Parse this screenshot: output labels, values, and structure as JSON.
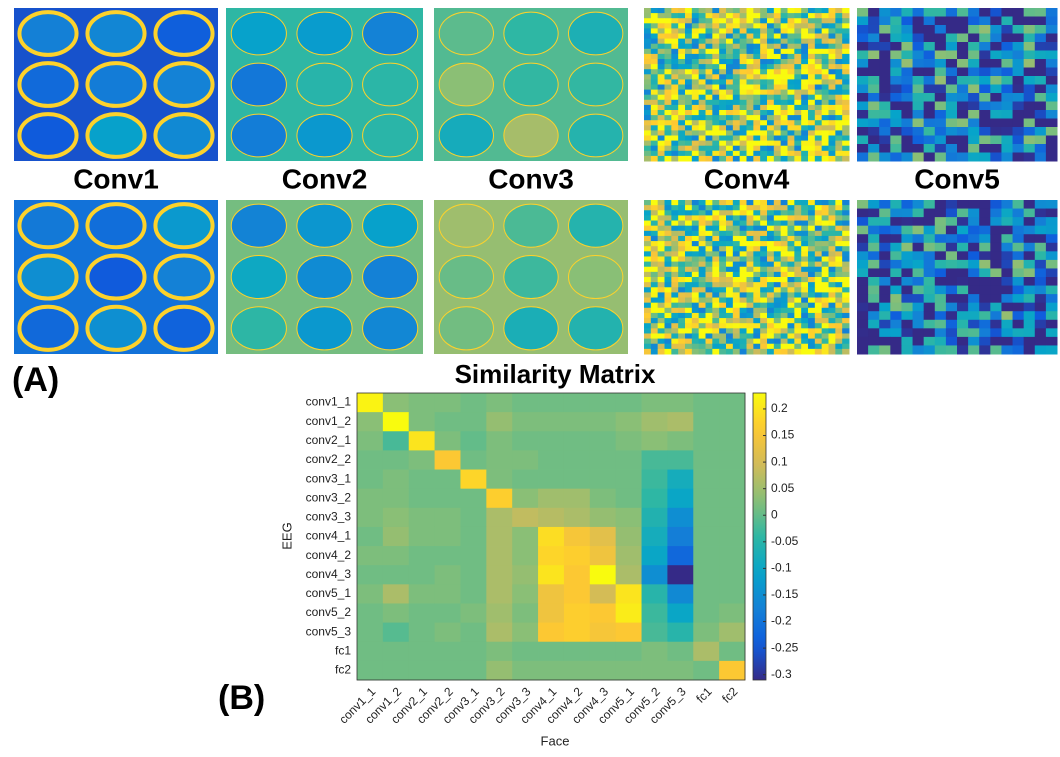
{
  "panel_a": {
    "label": "(A)",
    "layers": [
      "Conv1",
      "Conv2",
      "Conv3",
      "Conv4",
      "Conv5"
    ]
  },
  "panel_b": {
    "label": "(B)"
  },
  "chart_data": {
    "type": "heatmap",
    "title": "Similarity Matrix",
    "x_label": "Face",
    "y_label": "EEG",
    "colormap": "parula",
    "x": [
      "conv1_1",
      "conv1_2",
      "conv2_1",
      "conv2_2",
      "conv3_1",
      "conv3_2",
      "conv3_3",
      "conv4_1",
      "conv4_2",
      "conv4_3",
      "conv5_1",
      "conv5_2",
      "conv5_3",
      "fc1",
      "fc2"
    ],
    "y": [
      "conv1_1",
      "conv1_2",
      "conv2_1",
      "conv2_2",
      "conv3_1",
      "conv3_2",
      "conv3_3",
      "conv4_1",
      "conv4_2",
      "conv4_3",
      "conv5_1",
      "conv5_2",
      "conv5_3",
      "fc1",
      "fc2"
    ],
    "values": [
      [
        0.22,
        0.03,
        0.02,
        0.02,
        0.01,
        0.02,
        0.01,
        0.01,
        0.01,
        0.01,
        0.01,
        0.02,
        0.02,
        0.01,
        0.01
      ],
      [
        0.03,
        0.23,
        0.02,
        0.01,
        0.01,
        0.04,
        0.02,
        0.02,
        0.02,
        0.02,
        0.03,
        0.05,
        0.06,
        0.01,
        0.01
      ],
      [
        0.02,
        -0.02,
        0.2,
        0.02,
        0,
        0.02,
        0.01,
        0.01,
        0.01,
        0.01,
        0.02,
        0.03,
        0.02,
        0.01,
        0.01
      ],
      [
        0.01,
        0.01,
        0.02,
        0.16,
        0.01,
        0.02,
        0.02,
        0.01,
        0.01,
        0.01,
        0.01,
        -0.02,
        -0.02,
        0.01,
        0.01
      ],
      [
        0.01,
        0.02,
        0.01,
        0.01,
        0.18,
        0.02,
        0.01,
        0.01,
        0.01,
        0.01,
        0.01,
        -0.03,
        -0.08,
        0.01,
        0.01
      ],
      [
        0.02,
        0.02,
        0.01,
        0.01,
        0.01,
        0.17,
        0.03,
        0.05,
        0.05,
        0.02,
        0.01,
        -0.04,
        -0.1,
        0.01,
        0.01
      ],
      [
        0.02,
        0.03,
        0.02,
        0.02,
        0.01,
        0.06,
        0.08,
        0.07,
        0.06,
        0.04,
        0.03,
        -0.06,
        -0.15,
        0.01,
        0.01
      ],
      [
        0.01,
        0.04,
        0.02,
        0.02,
        0.01,
        0.06,
        0.03,
        0.19,
        0.15,
        0.12,
        0.04,
        -0.08,
        -0.18,
        0.01,
        0.01
      ],
      [
        0.02,
        0.02,
        0.01,
        0.01,
        0.01,
        0.06,
        0.03,
        0.18,
        0.17,
        0.14,
        0.05,
        -0.1,
        -0.22,
        0.01,
        0.01
      ],
      [
        0.01,
        0.01,
        0.01,
        0.02,
        0.01,
        0.06,
        0.04,
        0.2,
        0.16,
        0.23,
        0.06,
        -0.15,
        -0.31,
        0.01,
        0.01
      ],
      [
        0.02,
        0.06,
        0.02,
        0.02,
        0.01,
        0.06,
        0.03,
        0.14,
        0.16,
        0.1,
        0.2,
        -0.05,
        -0.16,
        0.01,
        0.01
      ],
      [
        0.01,
        0.02,
        0.01,
        0.01,
        0.02,
        0.05,
        0.02,
        0.14,
        0.17,
        0.16,
        0.21,
        -0.03,
        -0.1,
        0.01,
        0.02
      ],
      [
        0.01,
        -0.01,
        0.01,
        0.02,
        0.01,
        0.06,
        0.03,
        0.16,
        0.17,
        0.15,
        0.16,
        -0.02,
        -0.05,
        0.02,
        0.05
      ],
      [
        0.01,
        0.01,
        0.01,
        0.01,
        0.01,
        0.02,
        0.01,
        0.01,
        0.01,
        0.01,
        0.01,
        0.02,
        0.01,
        0.06,
        0.01
      ],
      [
        0.01,
        0.01,
        0.01,
        0.01,
        0.01,
        0.04,
        0.02,
        0.02,
        0.02,
        0.02,
        0.02,
        0.02,
        0.02,
        0.01,
        0.16
      ]
    ],
    "clim": [
      -0.31,
      0.23
    ],
    "cticks": [
      0.2,
      0.15,
      0.1,
      0.05,
      0,
      -0.05,
      -0.1,
      -0.15,
      -0.2,
      -0.25,
      -0.3
    ]
  }
}
